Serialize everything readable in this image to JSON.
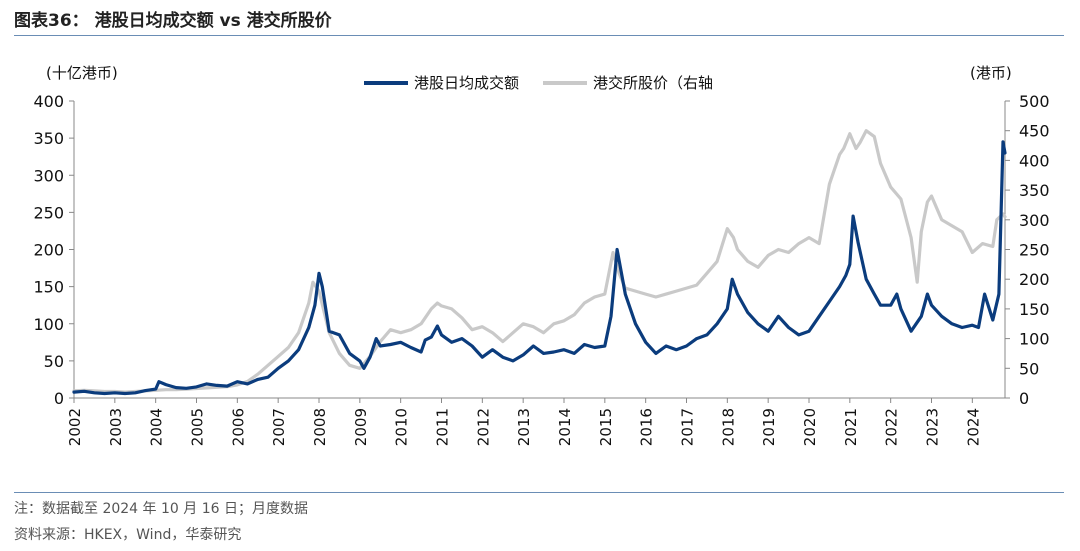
{
  "figure": {
    "title": "图表36： 港股日均成交额 vs 港交所股价",
    "note": "注：数据截至 2024 年 10 月 16 日；月度数据",
    "source": "资料来源：HKEX，Wind，华泰研究"
  },
  "chart_data": {
    "type": "line",
    "title": "",
    "left_axis_unit": "(十亿港币)",
    "right_axis_unit": "(港币)",
    "ylim_left": [
      0,
      400
    ],
    "ylim_right": [
      0,
      500
    ],
    "yticks_left": [
      0,
      50,
      100,
      150,
      200,
      250,
      300,
      350,
      400
    ],
    "yticks_right": [
      0,
      50,
      100,
      150,
      200,
      250,
      300,
      350,
      400,
      450,
      500
    ],
    "xticks": [
      "2002",
      "2003",
      "2004",
      "2005",
      "2006",
      "2007",
      "2008",
      "2009",
      "2010",
      "2011",
      "2012",
      "2013",
      "2014",
      "2015",
      "2016",
      "2017",
      "2018",
      "2019",
      "2020",
      "2021",
      "2022",
      "2023",
      "2024"
    ],
    "xlim": [
      2002.0,
      2024.8
    ],
    "grid": false,
    "legend_position": "top-center",
    "series": [
      {
        "name": "港股日均成交额",
        "axis": "left",
        "color": "#0b3c7d",
        "points": [
          [
            2002.0,
            8
          ],
          [
            2002.25,
            9
          ],
          [
            2002.5,
            7
          ],
          [
            2002.75,
            6
          ],
          [
            2003.0,
            7
          ],
          [
            2003.25,
            6
          ],
          [
            2003.5,
            7
          ],
          [
            2003.75,
            10
          ],
          [
            2004.0,
            12
          ],
          [
            2004.08,
            22
          ],
          [
            2004.25,
            18
          ],
          [
            2004.5,
            14
          ],
          [
            2004.75,
            13
          ],
          [
            2005.0,
            15
          ],
          [
            2005.25,
            19
          ],
          [
            2005.5,
            17
          ],
          [
            2005.75,
            16
          ],
          [
            2006.0,
            22
          ],
          [
            2006.25,
            19
          ],
          [
            2006.5,
            25
          ],
          [
            2006.75,
            28
          ],
          [
            2007.0,
            40
          ],
          [
            2007.25,
            50
          ],
          [
            2007.5,
            65
          ],
          [
            2007.75,
            95
          ],
          [
            2007.9,
            125
          ],
          [
            2008.0,
            168
          ],
          [
            2008.08,
            150
          ],
          [
            2008.25,
            90
          ],
          [
            2008.5,
            85
          ],
          [
            2008.75,
            60
          ],
          [
            2009.0,
            50
          ],
          [
            2009.1,
            40
          ],
          [
            2009.25,
            55
          ],
          [
            2009.4,
            80
          ],
          [
            2009.5,
            70
          ],
          [
            2009.75,
            72
          ],
          [
            2010.0,
            75
          ],
          [
            2010.25,
            68
          ],
          [
            2010.5,
            62
          ],
          [
            2010.6,
            78
          ],
          [
            2010.75,
            82
          ],
          [
            2010.9,
            97
          ],
          [
            2011.0,
            85
          ],
          [
            2011.25,
            75
          ],
          [
            2011.5,
            80
          ],
          [
            2011.75,
            70
          ],
          [
            2012.0,
            55
          ],
          [
            2012.25,
            65
          ],
          [
            2012.5,
            55
          ],
          [
            2012.75,
            50
          ],
          [
            2013.0,
            58
          ],
          [
            2013.25,
            70
          ],
          [
            2013.5,
            60
          ],
          [
            2013.75,
            62
          ],
          [
            2014.0,
            65
          ],
          [
            2014.25,
            60
          ],
          [
            2014.5,
            72
          ],
          [
            2014.75,
            68
          ],
          [
            2015.0,
            70
          ],
          [
            2015.15,
            110
          ],
          [
            2015.3,
            200
          ],
          [
            2015.5,
            140
          ],
          [
            2015.75,
            100
          ],
          [
            2016.0,
            75
          ],
          [
            2016.25,
            60
          ],
          [
            2016.5,
            70
          ],
          [
            2016.75,
            65
          ],
          [
            2017.0,
            70
          ],
          [
            2017.25,
            80
          ],
          [
            2017.5,
            85
          ],
          [
            2017.75,
            100
          ],
          [
            2018.0,
            120
          ],
          [
            2018.12,
            160
          ],
          [
            2018.25,
            140
          ],
          [
            2018.5,
            115
          ],
          [
            2018.75,
            100
          ],
          [
            2019.0,
            90
          ],
          [
            2019.25,
            110
          ],
          [
            2019.5,
            95
          ],
          [
            2019.75,
            85
          ],
          [
            2020.0,
            90
          ],
          [
            2020.25,
            110
          ],
          [
            2020.5,
            130
          ],
          [
            2020.75,
            150
          ],
          [
            2020.9,
            165
          ],
          [
            2021.0,
            180
          ],
          [
            2021.08,
            245
          ],
          [
            2021.2,
            210
          ],
          [
            2021.4,
            160
          ],
          [
            2021.6,
            140
          ],
          [
            2021.75,
            125
          ],
          [
            2022.0,
            125
          ],
          [
            2022.15,
            140
          ],
          [
            2022.25,
            120
          ],
          [
            2022.5,
            90
          ],
          [
            2022.75,
            110
          ],
          [
            2022.9,
            140
          ],
          [
            2023.0,
            125
          ],
          [
            2023.25,
            110
          ],
          [
            2023.5,
            100
          ],
          [
            2023.75,
            95
          ],
          [
            2024.0,
            98
          ],
          [
            2024.15,
            95
          ],
          [
            2024.3,
            140
          ],
          [
            2024.5,
            105
          ],
          [
            2024.65,
            140
          ],
          [
            2024.75,
            345
          ],
          [
            2024.8,
            330
          ]
        ]
      },
      {
        "name": "港交所股价（右轴",
        "axis": "right",
        "color": "#c9c9c9",
        "points": [
          [
            2002.0,
            12
          ],
          [
            2002.25,
            13
          ],
          [
            2002.5,
            12
          ],
          [
            2002.75,
            11
          ],
          [
            2003.0,
            11
          ],
          [
            2003.25,
            10
          ],
          [
            2003.5,
            11
          ],
          [
            2003.75,
            12
          ],
          [
            2004.0,
            13
          ],
          [
            2004.25,
            14
          ],
          [
            2004.5,
            14
          ],
          [
            2004.75,
            15
          ],
          [
            2005.0,
            16
          ],
          [
            2005.25,
            17
          ],
          [
            2005.5,
            18
          ],
          [
            2005.75,
            19
          ],
          [
            2006.0,
            22
          ],
          [
            2006.25,
            28
          ],
          [
            2006.5,
            40
          ],
          [
            2006.75,
            55
          ],
          [
            2007.0,
            70
          ],
          [
            2007.25,
            85
          ],
          [
            2007.5,
            110
          ],
          [
            2007.75,
            160
          ],
          [
            2007.85,
            195
          ],
          [
            2008.0,
            180
          ],
          [
            2008.25,
            110
          ],
          [
            2008.5,
            75
          ],
          [
            2008.75,
            55
          ],
          [
            2009.0,
            50
          ],
          [
            2009.25,
            70
          ],
          [
            2009.5,
            95
          ],
          [
            2009.75,
            115
          ],
          [
            2010.0,
            110
          ],
          [
            2010.25,
            115
          ],
          [
            2010.5,
            125
          ],
          [
            2010.75,
            150
          ],
          [
            2010.9,
            160
          ],
          [
            2011.0,
            155
          ],
          [
            2011.25,
            150
          ],
          [
            2011.5,
            135
          ],
          [
            2011.75,
            115
          ],
          [
            2012.0,
            120
          ],
          [
            2012.25,
            110
          ],
          [
            2012.5,
            95
          ],
          [
            2012.75,
            110
          ],
          [
            2013.0,
            125
          ],
          [
            2013.25,
            120
          ],
          [
            2013.5,
            110
          ],
          [
            2013.75,
            125
          ],
          [
            2014.0,
            130
          ],
          [
            2014.25,
            140
          ],
          [
            2014.5,
            160
          ],
          [
            2014.75,
            170
          ],
          [
            2015.0,
            175
          ],
          [
            2015.2,
            245
          ],
          [
            2015.35,
            210
          ],
          [
            2015.5,
            185
          ],
          [
            2015.75,
            180
          ],
          [
            2016.0,
            175
          ],
          [
            2016.25,
            170
          ],
          [
            2016.5,
            175
          ],
          [
            2016.75,
            180
          ],
          [
            2017.0,
            185
          ],
          [
            2017.25,
            190
          ],
          [
            2017.5,
            210
          ],
          [
            2017.75,
            230
          ],
          [
            2018.0,
            285
          ],
          [
            2018.15,
            270
          ],
          [
            2018.25,
            250
          ],
          [
            2018.5,
            230
          ],
          [
            2018.75,
            220
          ],
          [
            2019.0,
            240
          ],
          [
            2019.25,
            250
          ],
          [
            2019.5,
            245
          ],
          [
            2019.75,
            260
          ],
          [
            2020.0,
            270
          ],
          [
            2020.25,
            260
          ],
          [
            2020.5,
            360
          ],
          [
            2020.75,
            410
          ],
          [
            2020.85,
            420
          ],
          [
            2021.0,
            445
          ],
          [
            2021.15,
            420
          ],
          [
            2021.25,
            430
          ],
          [
            2021.4,
            450
          ],
          [
            2021.6,
            440
          ],
          [
            2021.75,
            395
          ],
          [
            2022.0,
            355
          ],
          [
            2022.25,
            335
          ],
          [
            2022.5,
            270
          ],
          [
            2022.65,
            195
          ],
          [
            2022.75,
            280
          ],
          [
            2022.9,
            330
          ],
          [
            2023.0,
            340
          ],
          [
            2023.25,
            300
          ],
          [
            2023.5,
            290
          ],
          [
            2023.75,
            280
          ],
          [
            2024.0,
            245
          ],
          [
            2024.25,
            260
          ],
          [
            2024.5,
            255
          ],
          [
            2024.6,
            300
          ],
          [
            2024.75,
            310
          ],
          [
            2024.8,
            305
          ]
        ]
      }
    ]
  }
}
